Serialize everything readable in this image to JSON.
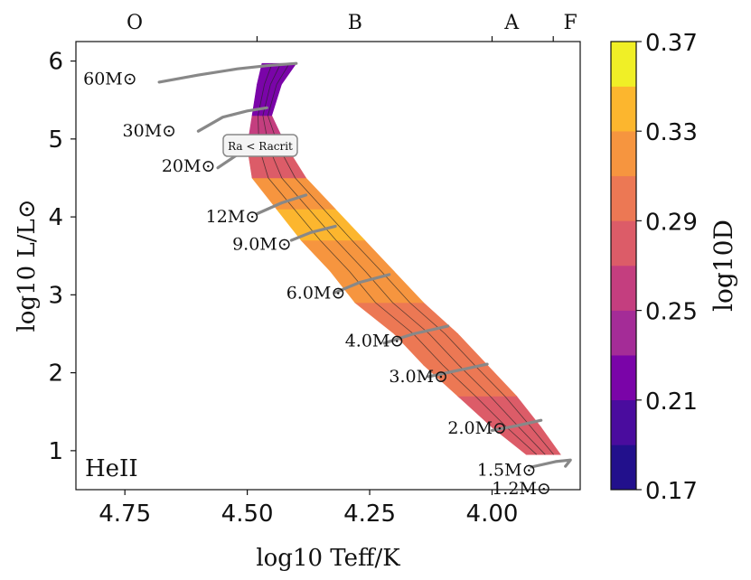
{
  "chart_data": {
    "type": "heatmap",
    "xlabel": "log10 Teff/K",
    "ylabel": "log10 L/L⊙",
    "colorbar_label": "log10D",
    "panel_label": "HeII",
    "annotation": "Ra < Racrit",
    "xlim": [
      4.85,
      3.82
    ],
    "ylim": [
      0.5,
      6.25
    ],
    "x_ticks": [
      "4.75",
      "4.50",
      "4.25",
      "4.00"
    ],
    "x_tick_values": [
      4.75,
      4.5,
      4.25,
      4.0
    ],
    "y_ticks": [
      "1",
      "2",
      "3",
      "4",
      "5",
      "6"
    ],
    "y_tick_values": [
      1,
      2,
      3,
      4,
      5,
      6
    ],
    "spectral_classes": [
      {
        "label": "O",
        "x": 4.73
      },
      {
        "label": "B",
        "x": 4.28
      },
      {
        "label": "A",
        "x": 3.96
      },
      {
        "label": "F",
        "x": 3.84
      }
    ],
    "spectral_boundaries": [
      4.48,
      4.0,
      3.875
    ],
    "colorbar": {
      "levels": [
        0.17,
        0.19,
        0.21,
        0.23,
        0.25,
        0.27,
        0.29,
        0.31,
        0.33,
        0.35,
        0.37
      ],
      "tick_labels": [
        "0.17",
        "0.21",
        "0.25",
        "0.29",
        "0.33",
        "0.37"
      ],
      "tick_values": [
        0.17,
        0.21,
        0.25,
        0.29,
        0.33,
        0.37
      ],
      "colors": [
        "#22108c",
        "#4a0c9e",
        "#7a04a8",
        "#a42c97",
        "#c43e7f",
        "#dc5c68",
        "#ec7854",
        "#f6953f",
        "#fcb62e",
        "#f0ef26"
      ]
    },
    "tracks": [
      {
        "label": "60M⊙",
        "label_x": 4.78,
        "label_y": 5.7,
        "points": [
          [
            4.68,
            5.73
          ],
          [
            4.6,
            5.82
          ],
          [
            4.52,
            5.9
          ],
          [
            4.46,
            5.94
          ],
          [
            4.4,
            5.97
          ]
        ]
      },
      {
        "label": "30M⊙",
        "label_x": 4.7,
        "label_y": 5.03,
        "points": [
          [
            4.6,
            5.1
          ],
          [
            4.55,
            5.28
          ],
          [
            4.5,
            5.36
          ],
          [
            4.46,
            5.4
          ]
        ]
      },
      {
        "label": "20M⊙",
        "label_x": 4.62,
        "label_y": 4.58,
        "points": [
          [
            4.56,
            4.63
          ],
          [
            4.52,
            4.8
          ],
          [
            4.48,
            4.9
          ]
        ]
      },
      {
        "label": "12M⊙",
        "label_x": 4.53,
        "label_y": 3.93,
        "points": [
          [
            4.48,
            4.04
          ],
          [
            4.43,
            4.18
          ],
          [
            4.38,
            4.28
          ]
        ]
      },
      {
        "label": "9.0M⊙",
        "label_x": 4.47,
        "label_y": 3.58,
        "points": [
          [
            4.41,
            3.7
          ],
          [
            4.37,
            3.8
          ],
          [
            4.32,
            3.88
          ]
        ]
      },
      {
        "label": "6.0M⊙",
        "label_x": 4.36,
        "label_y": 2.95,
        "points": [
          [
            4.32,
            3.03
          ],
          [
            4.27,
            3.16
          ],
          [
            4.21,
            3.26
          ]
        ]
      },
      {
        "label": "4.0M⊙",
        "label_x": 4.24,
        "label_y": 2.34,
        "points": [
          [
            4.22,
            2.38
          ],
          [
            4.16,
            2.5
          ],
          [
            4.09,
            2.6
          ]
        ]
      },
      {
        "label": "3.0M⊙",
        "label_x": 4.15,
        "label_y": 1.88,
        "points": [
          [
            4.13,
            1.95
          ],
          [
            4.07,
            2.03
          ],
          [
            4.01,
            2.11
          ]
        ]
      },
      {
        "label": "2.0M⊙",
        "label_x": 4.03,
        "label_y": 1.22,
        "points": [
          [
            4.0,
            1.26
          ],
          [
            3.95,
            1.32
          ],
          [
            3.9,
            1.39
          ]
        ]
      },
      {
        "label": "1.5M⊙",
        "label_x": 3.97,
        "label_y": 0.68,
        "points": [
          [
            3.92,
            0.79
          ],
          [
            3.87,
            0.86
          ],
          [
            3.84,
            0.88
          ],
          [
            3.85,
            0.8
          ]
        ]
      },
      {
        "label": "1.2M⊙",
        "label_x": 3.94,
        "label_y": 0.44,
        "points": []
      }
    ],
    "band": [
      {
        "y": 0.95,
        "x_hot": 3.93,
        "x_cool": 3.86,
        "value": 0.28
      },
      {
        "y": 1.3,
        "x_hot": 4.0,
        "x_cool": 3.9,
        "value": 0.285
      },
      {
        "y": 1.7,
        "x_hot": 4.07,
        "x_cool": 3.95,
        "value": 0.29
      },
      {
        "y": 2.1,
        "x_hot": 4.14,
        "x_cool": 4.01,
        "value": 0.3
      },
      {
        "y": 2.5,
        "x_hot": 4.2,
        "x_cool": 4.07,
        "value": 0.305
      },
      {
        "y": 2.9,
        "x_hot": 4.28,
        "x_cool": 4.14,
        "value": 0.31
      },
      {
        "y": 3.3,
        "x_hot": 4.33,
        "x_cool": 4.2,
        "value": 0.32
      },
      {
        "y": 3.7,
        "x_hot": 4.39,
        "x_cool": 4.26,
        "value": 0.33
      },
      {
        "y": 4.1,
        "x_hot": 4.44,
        "x_cool": 4.32,
        "value": 0.35
      },
      {
        "y": 4.5,
        "x_hot": 4.49,
        "x_cool": 4.38,
        "value": 0.31
      },
      {
        "y": 4.9,
        "x_hot": 4.5,
        "x_cool": 4.42,
        "value": 0.26
      },
      {
        "y": 5.3,
        "x_hot": 4.49,
        "x_cool": 4.45,
        "value": 0.24
      },
      {
        "y": 5.7,
        "x_hot": 4.48,
        "x_cool": 4.43,
        "value": 0.22
      },
      {
        "y": 5.97,
        "x_hot": 4.47,
        "x_cool": 4.4,
        "value": 0.2
      }
    ]
  }
}
